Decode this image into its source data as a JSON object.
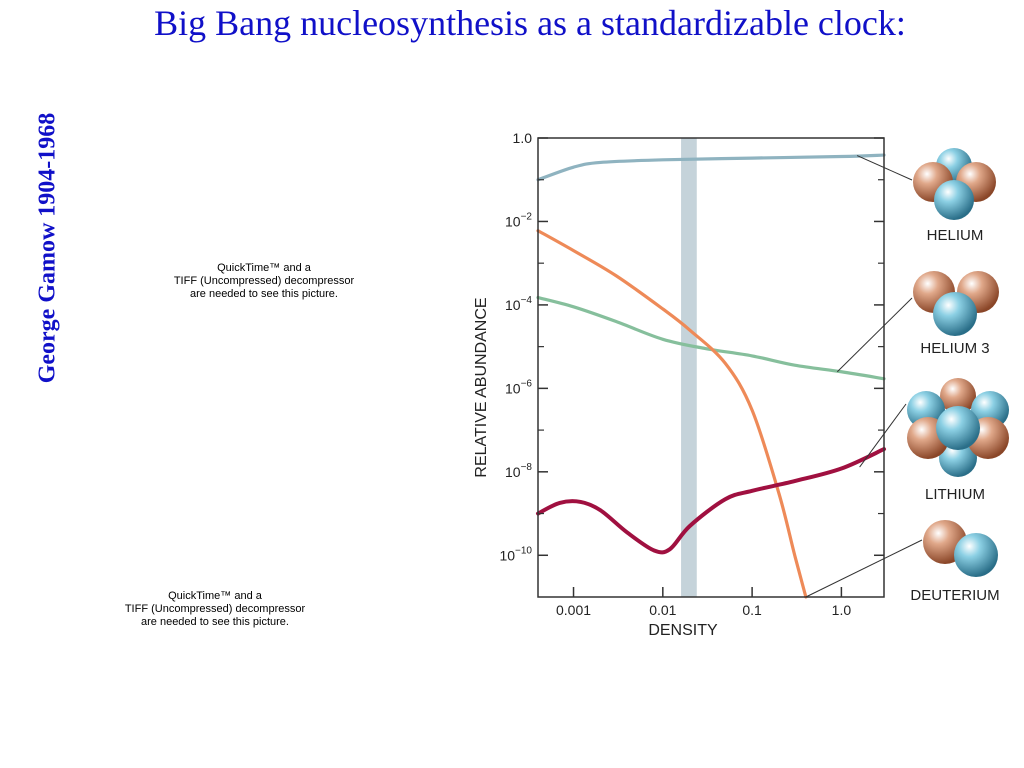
{
  "slide": {
    "title": "Big Bang nucleosynthesis as a standardizable clock:",
    "side_text": "George Gamow 1904-1968",
    "quicktime_placeholders": [
      {
        "line1": "QuickTime™ and a",
        "line2": "TIFF (Uncompressed) decompressor",
        "line3": "are needed to see this picture."
      },
      {
        "line1": "QuickTime™ and a",
        "line2": "TIFF (Uncompressed) decompressor",
        "line3": "are needed to see this picture."
      }
    ]
  },
  "chart_data": {
    "type": "line",
    "xlabel": "DENSITY",
    "ylabel": "RELATIVE ABUNDANCE",
    "x_scale": "log",
    "y_scale": "log",
    "xlim": [
      0.0004,
      3.0
    ],
    "ylim": [
      1e-11,
      1.0
    ],
    "x_ticks": [
      {
        "value": 0.001,
        "label": "0.001"
      },
      {
        "value": 0.01,
        "label": "0.01"
      },
      {
        "value": 0.1,
        "label": "0.1"
      },
      {
        "value": 1.0,
        "label": "1.0"
      }
    ],
    "y_ticks": [
      {
        "value": 1.0,
        "base": "1.0",
        "exp": ""
      },
      {
        "value": 0.01,
        "base": "10",
        "exp": "−2"
      },
      {
        "value": 0.0001,
        "base": "10",
        "exp": "−4"
      },
      {
        "value": 1e-06,
        "base": "10",
        "exp": "−6"
      },
      {
        "value": 1e-08,
        "base": "10",
        "exp": "−8"
      },
      {
        "value": 1e-10,
        "base": "10",
        "exp": "−10"
      }
    ],
    "band": {
      "x_range": [
        0.016,
        0.024
      ],
      "color": "#c5d3da"
    },
    "series": [
      {
        "name": "HELIUM",
        "color": "#8fb3c0",
        "x": [
          0.0004,
          0.001,
          0.002,
          0.01,
          0.1,
          1.0,
          3.0
        ],
        "y": [
          0.1,
          0.2,
          0.26,
          0.3,
          0.33,
          0.36,
          0.39
        ]
      },
      {
        "name": "HELIUM 3",
        "color": "#86bf9c",
        "x": [
          0.0004,
          0.001,
          0.003,
          0.01,
          0.03,
          0.1,
          0.3,
          1.0,
          3.0
        ],
        "y": [
          0.00015,
          9e-05,
          4e-05,
          1.5e-05,
          9e-06,
          6e-06,
          3.6e-06,
          2.5e-06,
          1.7e-06
        ]
      },
      {
        "name": "DEUTERIUM",
        "color": "#ee8a58",
        "x": [
          0.0004,
          0.001,
          0.003,
          0.01,
          0.02,
          0.05,
          0.1,
          0.2,
          0.3,
          0.4
        ],
        "y": [
          0.006,
          0.002,
          0.0005,
          8e-05,
          2.5e-05,
          4e-06,
          3e-07,
          3e-09,
          1e-10,
          1e-11
        ]
      },
      {
        "name": "LITHIUM",
        "color": "#a01040",
        "x": [
          0.0004,
          0.0007,
          0.0012,
          0.002,
          0.004,
          0.008,
          0.012,
          0.02,
          0.05,
          0.1,
          0.3,
          1.0,
          3.0
        ],
        "y": [
          1e-09,
          1.8e-09,
          1.9e-09,
          1.2e-09,
          3.5e-10,
          1.3e-10,
          1.4e-10,
          5e-10,
          2.2e-09,
          3.5e-09,
          6e-09,
          1.2e-08,
          3.5e-08
        ]
      }
    ],
    "labels": [
      {
        "text": "HELIUM",
        "series": "HELIUM",
        "anchor_x": 1.5,
        "anchor_y": 0.38
      },
      {
        "text": "HELIUM 3",
        "series": "HELIUM 3",
        "anchor_x": 0.9,
        "anchor_y": 2.5e-06
      },
      {
        "text": "LITHIUM",
        "series": "LITHIUM",
        "anchor_x": 1.6,
        "anchor_y": 1.3e-08
      },
      {
        "text": "DEUTERIUM",
        "series": "DEUTERIUM",
        "anchor_x": 0.4,
        "anchor_y": 1e-11
      }
    ],
    "nucleus_colors": {
      "proton": "#c0704a",
      "neutron": "#4aa0c0"
    }
  }
}
